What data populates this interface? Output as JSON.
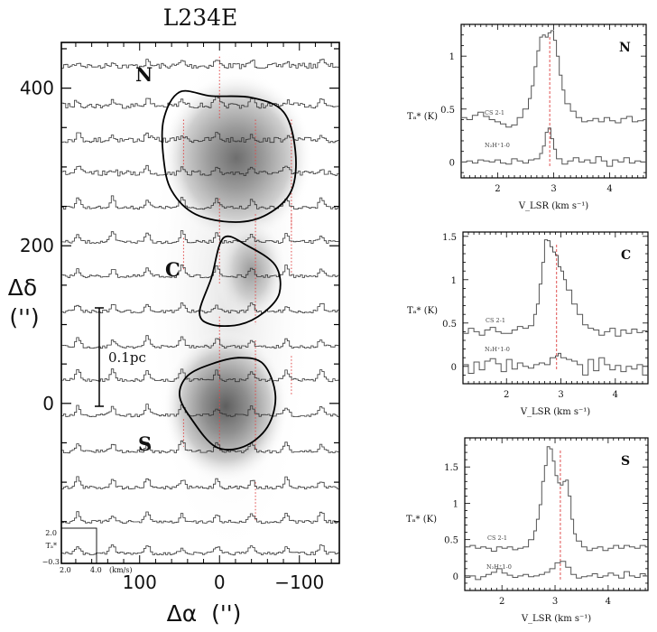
{
  "chart_data": [
    {
      "type": "map",
      "title": "L234E",
      "xlabel": "Δα  ('')",
      "ylabel_line1": "Δδ",
      "ylabel_line2": "('')",
      "xlim": [
        198,
        -150
      ],
      "ylim": [
        -203,
        458
      ],
      "xticks": [
        100,
        0,
        -100
      ],
      "xtick_labels": [
        "100",
        "0",
        "−100"
      ],
      "yticks": [
        0,
        200,
        400
      ],
      "ytick_labels": [
        "0",
        "200",
        "400"
      ],
      "grid": false,
      "spectra_grid": {
        "dalpha": [
          180,
          135,
          90,
          45,
          0,
          -45,
          -90,
          -135
        ],
        "ddelta": [
          420,
          375,
          330,
          285,
          240,
          195,
          150,
          105,
          60,
          15,
          -30,
          -75,
          -120,
          -165,
          -195
        ],
        "note": "CS 2-1 spectra grid"
      },
      "inset_scale": {
        "ta_max": "2.0",
        "ta_label": "Tₐ*",
        "ta_min": "−0.3",
        "v_min": "2.0",
        "v_max": "4.0",
        "v_unit": "(km/s)"
      },
      "scale_bar_label": "0.1pc",
      "cores": [
        {
          "label": "N",
          "dalpha": 170,
          "ddelta": 420
        },
        {
          "label": "C",
          "dalpha": 75,
          "ddelta": 170
        },
        {
          "label": "S",
          "dalpha": 115,
          "ddelta": -40
        }
      ],
      "contours": [
        {
          "name": "N-core",
          "points": [
            [
              50,
              395
            ],
            [
              10,
              390
            ],
            [
              -40,
              388
            ],
            [
              -80,
              370
            ],
            [
              -95,
              320
            ],
            [
              -90,
              270
            ],
            [
              -60,
              240
            ],
            [
              -20,
              230
            ],
            [
              30,
              240
            ],
            [
              60,
              270
            ],
            [
              70,
              310
            ],
            [
              70,
              360
            ]
          ]
        },
        {
          "name": "C-core",
          "points": [
            [
              -5,
              210
            ],
            [
              -35,
              200
            ],
            [
              -70,
              175
            ],
            [
              -75,
              140
            ],
            [
              -55,
              115
            ],
            [
              -25,
              100
            ],
            [
              10,
              100
            ],
            [
              25,
              115
            ],
            [
              10,
              160
            ]
          ]
        },
        {
          "name": "S-core",
          "points": [
            [
              -25,
              58
            ],
            [
              -55,
              50
            ],
            [
              -70,
              10
            ],
            [
              -60,
              -30
            ],
            [
              -30,
              -55
            ],
            [
              5,
              -55
            ],
            [
              35,
              -20
            ],
            [
              50,
              10
            ],
            [
              40,
              35
            ],
            [
              10,
              50
            ]
          ]
        }
      ],
      "red_dotted_lines": [
        45,
        0,
        -45,
        -90
      ]
    },
    {
      "type": "line",
      "panel": "N",
      "xlabel": "V_LSR (km s⁻¹)",
      "ylabel": "Tₐ* (K)",
      "xlim": [
        1.35,
        4.65
      ],
      "ylim": [
        -0.15,
        1.3
      ],
      "xticks": [
        2,
        3,
        4
      ],
      "yticks": [
        0,
        0.5,
        1
      ],
      "ytick_labels": [
        "0",
        "0.5",
        "1"
      ],
      "reference_velocity": 2.93,
      "series": [
        {
          "name": "CS 2-1",
          "x": [
            1.35,
            1.45,
            1.55,
            1.65,
            1.75,
            1.85,
            1.95,
            2.05,
            2.15,
            2.25,
            2.35,
            2.45,
            2.55,
            2.6,
            2.65,
            2.7,
            2.75,
            2.8,
            2.85,
            2.9,
            2.95,
            3.0,
            3.05,
            3.1,
            3.15,
            3.2,
            3.3,
            3.4,
            3.5,
            3.6,
            3.7,
            3.8,
            3.9,
            4.0,
            4.1,
            4.2,
            4.3,
            4.4,
            4.5,
            4.6
          ],
          "values": [
            0.42,
            0.4,
            0.44,
            0.47,
            0.43,
            0.4,
            0.38,
            0.36,
            0.33,
            0.35,
            0.42,
            0.5,
            0.6,
            0.72,
            0.9,
            1.05,
            1.18,
            1.2,
            1.18,
            1.22,
            1.24,
            1.15,
            1.0,
            0.82,
            0.68,
            0.55,
            0.48,
            0.42,
            0.38,
            0.39,
            0.41,
            0.38,
            0.42,
            0.39,
            0.37,
            0.41,
            0.43,
            0.38,
            0.39,
            0.4
          ]
        },
        {
          "name": "N₂H⁺ 1-0",
          "x": [
            1.35,
            1.45,
            1.55,
            1.65,
            1.75,
            1.85,
            1.95,
            2.05,
            2.15,
            2.25,
            2.35,
            2.45,
            2.55,
            2.65,
            2.75,
            2.8,
            2.85,
            2.9,
            2.95,
            3.0,
            3.05,
            3.15,
            3.25,
            3.35,
            3.45,
            3.55,
            3.65,
            3.75,
            3.85,
            3.95,
            4.05,
            4.15,
            4.25,
            4.35,
            4.45,
            4.55
          ],
          "values": [
            0.0,
            0.01,
            -0.01,
            0.02,
            0.01,
            0.0,
            0.02,
            -0.01,
            -0.02,
            0.03,
            0.01,
            -0.01,
            0.02,
            0.03,
            0.08,
            0.15,
            0.28,
            0.32,
            0.22,
            0.12,
            0.03,
            -0.02,
            0.01,
            0.04,
            0.0,
            0.02,
            -0.01,
            0.05,
            0.01,
            -0.04,
            0.02,
            0.0,
            0.04,
            -0.01,
            0.01,
            0.0
          ]
        }
      ],
      "series_labels": [
        "CS 2-1",
        "N₂H⁺1-0"
      ]
    },
    {
      "type": "line",
      "panel": "C",
      "xlabel": "V_LSR (km s⁻¹)",
      "ylabel": "Tₐ* (K)",
      "xlim": [
        1.2,
        4.6
      ],
      "ylim": [
        -0.2,
        1.55
      ],
      "xticks": [
        2,
        3,
        4
      ],
      "yticks": [
        0,
        0.5,
        1,
        1.5
      ],
      "ytick_labels": [
        "0",
        "0.5",
        "1",
        "1.5"
      ],
      "reference_velocity": 2.92,
      "series": [
        {
          "name": "CS 2-1",
          "x": [
            1.2,
            1.3,
            1.4,
            1.5,
            1.6,
            1.7,
            1.8,
            1.9,
            2.0,
            2.1,
            2.2,
            2.3,
            2.4,
            2.5,
            2.55,
            2.6,
            2.65,
            2.7,
            2.75,
            2.8,
            2.85,
            2.9,
            2.95,
            3.0,
            3.05,
            3.1,
            3.2,
            3.3,
            3.4,
            3.5,
            3.6,
            3.7,
            3.8,
            3.9,
            4.0,
            4.1,
            4.2,
            4.3,
            4.4,
            4.5
          ],
          "values": [
            0.38,
            0.44,
            0.4,
            0.36,
            0.42,
            0.45,
            0.4,
            0.38,
            0.38,
            0.42,
            0.46,
            0.44,
            0.47,
            0.6,
            0.72,
            0.95,
            1.2,
            1.46,
            1.45,
            1.38,
            1.32,
            1.28,
            1.15,
            1.1,
            1.0,
            0.88,
            0.72,
            0.6,
            0.48,
            0.44,
            0.42,
            0.36,
            0.4,
            0.44,
            0.35,
            0.42,
            0.38,
            0.43,
            0.39,
            0.41
          ]
        },
        {
          "name": "N₂H⁺ 1-0",
          "x": [
            1.2,
            1.3,
            1.4,
            1.5,
            1.6,
            1.7,
            1.8,
            1.9,
            2.0,
            2.1,
            2.2,
            2.3,
            2.4,
            2.5,
            2.6,
            2.7,
            2.8,
            2.9,
            2.95,
            3.0,
            3.1,
            3.2,
            3.3,
            3.4,
            3.5,
            3.6,
            3.7,
            3.8,
            3.9,
            4.0,
            4.1,
            4.2,
            4.3,
            4.4,
            4.5
          ],
          "values": [
            0.02,
            -0.08,
            0.05,
            -0.04,
            0.06,
            0.09,
            0.03,
            -0.06,
            0.08,
            -0.03,
            0.04,
            0.0,
            -0.02,
            0.02,
            0.04,
            0.02,
            0.1,
            0.12,
            0.15,
            0.1,
            0.08,
            0.06,
            0.02,
            -0.1,
            0.08,
            -0.05,
            0.1,
            0.02,
            -0.04,
            0.01,
            -0.06,
            0.0,
            -0.03,
            0.02,
            -0.1
          ]
        }
      ],
      "series_labels": [
        "CS 2-1",
        "N₂H⁺1-0"
      ]
    },
    {
      "type": "line",
      "panel": "S",
      "xlabel": "V_LSR (km s⁻¹)",
      "ylabel": "Tₐ* (K)",
      "xlim": [
        1.3,
        4.75
      ],
      "ylim": [
        -0.2,
        1.9
      ],
      "xticks": [
        2,
        3,
        4
      ],
      "yticks": [
        0,
        0.5,
        1,
        1.5
      ],
      "ytick_labels": [
        "0",
        "0.5",
        "1",
        "1.5"
      ],
      "reference_velocity": 3.1,
      "series": [
        {
          "name": "CS 2-1",
          "x": [
            1.3,
            1.4,
            1.5,
            1.6,
            1.7,
            1.8,
            1.9,
            2.0,
            2.1,
            2.2,
            2.3,
            2.4,
            2.5,
            2.6,
            2.65,
            2.7,
            2.75,
            2.8,
            2.85,
            2.9,
            2.95,
            3.0,
            3.05,
            3.1,
            3.15,
            3.2,
            3.25,
            3.3,
            3.35,
            3.4,
            3.5,
            3.6,
            3.7,
            3.8,
            3.9,
            4.0,
            4.1,
            4.2,
            4.3,
            4.4,
            4.5,
            4.6,
            4.7
          ],
          "values": [
            0.4,
            0.42,
            0.38,
            0.4,
            0.38,
            0.34,
            0.4,
            0.38,
            0.4,
            0.36,
            0.38,
            0.4,
            0.5,
            0.62,
            0.78,
            0.98,
            1.3,
            1.52,
            1.78,
            1.75,
            1.58,
            1.38,
            1.28,
            1.25,
            1.3,
            1.32,
            1.1,
            0.78,
            0.58,
            0.48,
            0.4,
            0.35,
            0.38,
            0.4,
            0.35,
            0.38,
            0.42,
            0.38,
            0.42,
            0.4,
            0.38,
            0.42,
            0.4
          ]
        },
        {
          "name": "N₂H⁺ 1-0",
          "x": [
            1.3,
            1.4,
            1.5,
            1.6,
            1.7,
            1.8,
            1.9,
            2.0,
            2.1,
            2.2,
            2.3,
            2.4,
            2.5,
            2.6,
            2.7,
            2.8,
            2.9,
            3.0,
            3.1,
            3.2,
            3.3,
            3.4,
            3.5,
            3.6,
            3.7,
            3.8,
            3.9,
            4.0,
            4.1,
            4.2,
            4.3,
            4.4,
            4.5,
            4.6,
            4.7
          ],
          "values": [
            -0.02,
            0.0,
            -0.05,
            -0.01,
            0.02,
            0.05,
            0.1,
            0.04,
            0.01,
            -0.02,
            0.0,
            0.02,
            -0.01,
            0.0,
            0.02,
            0.05,
            0.1,
            0.18,
            0.2,
            0.12,
            0.02,
            -0.03,
            -0.01,
            0.0,
            0.03,
            -0.02,
            0.0,
            0.04,
            0.01,
            -0.03,
            0.06,
            0.0,
            -0.02,
            0.03,
            0.0
          ]
        }
      ],
      "series_labels": [
        "CS 2-1",
        "N₂H⁺1-0"
      ]
    }
  ]
}
